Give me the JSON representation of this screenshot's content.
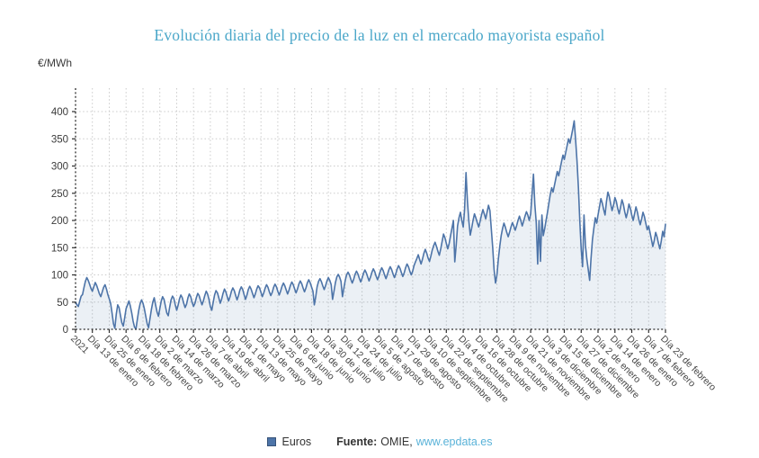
{
  "legend": {
    "position": "bottom"
  },
  "footer": {
    "source_label": "Fuente:",
    "source_name": "OMIE,",
    "source_link": "www.epdata.es"
  },
  "chart_data": {
    "type": "area",
    "title": "Evolución diaria del precio de la luz en el mercado mayorista español",
    "xlabel": "",
    "ylabel": "€/MWh",
    "ylim": [
      0,
      400
    ],
    "y_ticks": [
      0,
      50,
      100,
      150,
      200,
      250,
      300,
      350,
      400
    ],
    "grid": true,
    "legend_position": "bottom",
    "tick_interval_points": 12,
    "x_tick_labels": [
      "2021",
      "Día 13 de enero",
      "Día 25 de enero",
      "Día 6 de febrero",
      "Día 18 de febrero",
      "Día 2 de marzo",
      "Día 14 de marzo",
      "Día 26 de marzo",
      "Día 7 de abril",
      "Día 19 de abril",
      "Día 1 de mayo",
      "Día 13 de mayo",
      "Día 25 de mayo",
      "Día 6 de junio",
      "Día 18 de junio",
      "Día 30 de junio",
      "Día 12 de julio",
      "Día 24 de julio",
      "Día 5 de agosto",
      "Día 17 de agosto",
      "Día 29 de agosto",
      "Día 10 de septiembre",
      "Día 22 de septiembre",
      "Día 4 de octubre",
      "Día 16 de octubre",
      "Día 28 de octubre",
      "Día 9 de noviembre",
      "Día 21 de noviembre",
      "Día 3 de diciembre",
      "Día 15 de diciembre",
      "Día 27 de diciembre",
      "Día 2 de enero",
      "Día 14 de enero",
      "Día 26 de enero",
      "Día 7 de febrero",
      "Día 23 de febrero"
    ],
    "series": [
      {
        "name": "Euros",
        "values": [
          50,
          45,
          42,
          52,
          61,
          64,
          77,
          88,
          95,
          90,
          83,
          75,
          70,
          78,
          86,
          81,
          73,
          65,
          60,
          69,
          77,
          82,
          74,
          64,
          56,
          48,
          30,
          10,
          2,
          28,
          45,
          40,
          25,
          12,
          6,
          22,
          38,
          45,
          52,
          43,
          30,
          15,
          4,
          1,
          18,
          35,
          47,
          54,
          48,
          38,
          24,
          10,
          3,
          20,
          36,
          50,
          58,
          45,
          32,
          24,
          38,
          52,
          60,
          55,
          42,
          30,
          25,
          40,
          54,
          61,
          57,
          45,
          35,
          44,
          56,
          63,
          58,
          48,
          40,
          46,
          58,
          65,
          60,
          50,
          42,
          48,
          58,
          66,
          62,
          53,
          45,
          52,
          62,
          70,
          65,
          55,
          42,
          35,
          50,
          63,
          71,
          67,
          58,
          48,
          55,
          66,
          74,
          69,
          60,
          52,
          60,
          70,
          76,
          71,
          62,
          54,
          62,
          72,
          78,
          73,
          64,
          55,
          63,
          73,
          79,
          74,
          66,
          58,
          65,
          74,
          80,
          76,
          68,
          60,
          67,
          76,
          82,
          77,
          69,
          62,
          68,
          77,
          83,
          78,
          70,
          63,
          70,
          79,
          85,
          80,
          72,
          65,
          72,
          81,
          87,
          82,
          74,
          67,
          74,
          83,
          89,
          84,
          76,
          69,
          76,
          85,
          91,
          86,
          78,
          70,
          45,
          60,
          78,
          88,
          93,
          88,
          80,
          73,
          80,
          89,
          95,
          90,
          82,
          55,
          70,
          86,
          96,
          101,
          96,
          88,
          60,
          75,
          90,
          100,
          105,
          100,
          92,
          85,
          92,
          101,
          107,
          102,
          94,
          87,
          94,
          103,
          109,
          104,
          96,
          89,
          96,
          105,
          111,
          106,
          98,
          91,
          98,
          107,
          113,
          108,
          100,
          93,
          100,
          109,
          115,
          110,
          102,
          95,
          102,
          111,
          117,
          112,
          104,
          97,
          104,
          113,
          120,
          115,
          107,
          100,
          107,
          117,
          124,
          130,
          137,
          128,
          120,
          129,
          140,
          147,
          140,
          131,
          125,
          135,
          146,
          154,
          160,
          152,
          143,
          136,
          148,
          162,
          175,
          168,
          158,
          148,
          158,
          172,
          186,
          200,
          124,
          155,
          190,
          205,
          215,
          200,
          188,
          220,
          288,
          235,
          200,
          173,
          186,
          200,
          212,
          205,
          196,
          188,
          198,
          210,
          220,
          212,
          203,
          215,
          228,
          218,
          185,
          150,
          110,
          85,
          100,
          128,
          152,
          172,
          185,
          195,
          188,
          178,
          170,
          178,
          188,
          196,
          190,
          182,
          190,
          200,
          208,
          200,
          190,
          198,
          208,
          216,
          210,
          200,
          212,
          248,
          285,
          230,
          196,
          120,
          200,
          125,
          210,
          172,
          185,
          200,
          215,
          232,
          248,
          260,
          252,
          265,
          278,
          290,
          282,
          295,
          308,
          320,
          312,
          325,
          338,
          350,
          342,
          355,
          368,
          383,
          350,
          310,
          260,
          200,
          147,
          115,
          210,
          155,
          130,
          110,
          90,
          130,
          165,
          185,
          205,
          195,
          210,
          225,
          240,
          232,
          220,
          210,
          235,
          252,
          244,
          230,
          218,
          228,
          242,
          235,
          222,
          212,
          224,
          238,
          230,
          216,
          205,
          215,
          230,
          222,
          210,
          200,
          212,
          225,
          215,
          202,
          192,
          202,
          215,
          207,
          195,
          183,
          190,
          178,
          165,
          152,
          163,
          178,
          170,
          158,
          148,
          162,
          180,
          170,
          193
        ]
      }
    ],
    "colors": {
      "title": "#4ba7c9",
      "line": "#4d74a8",
      "fill": "#4d74a8",
      "fill_opacity": 0.11,
      "link": "#59b2d8",
      "text": "#333333"
    }
  }
}
